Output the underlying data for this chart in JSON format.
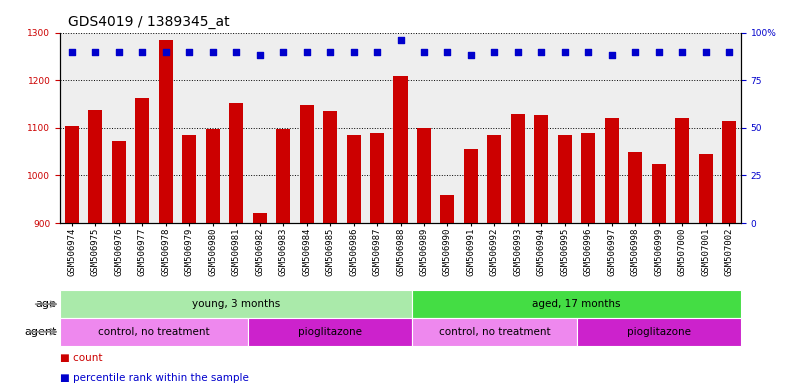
{
  "title": "GDS4019 / 1389345_at",
  "samples": [
    "GSM506974",
    "GSM506975",
    "GSM506976",
    "GSM506977",
    "GSM506978",
    "GSM506979",
    "GSM506980",
    "GSM506981",
    "GSM506982",
    "GSM506983",
    "GSM506984",
    "GSM506985",
    "GSM506986",
    "GSM506987",
    "GSM506988",
    "GSM506989",
    "GSM506990",
    "GSM506991",
    "GSM506992",
    "GSM506993",
    "GSM506994",
    "GSM506995",
    "GSM506996",
    "GSM506997",
    "GSM506998",
    "GSM506999",
    "GSM507000",
    "GSM507001",
    "GSM507002"
  ],
  "counts": [
    1103,
    1138,
    1073,
    1162,
    1284,
    1085,
    1098,
    1153,
    921,
    1097,
    1148,
    1135,
    1085,
    1090,
    1208,
    1100,
    960,
    1055,
    1085,
    1130,
    1128,
    1085,
    1090,
    1120,
    1050,
    1025,
    1120,
    1046,
    1115
  ],
  "percentile_ranks": [
    90,
    90,
    90,
    90,
    90,
    90,
    90,
    90,
    88,
    90,
    90,
    90,
    90,
    90,
    96,
    90,
    90,
    88,
    90,
    90,
    90,
    90,
    90,
    88,
    90,
    90,
    90,
    90,
    90
  ],
  "ylim_left": [
    900,
    1300
  ],
  "ylim_right": [
    0,
    100
  ],
  "yticks_left": [
    900,
    1000,
    1100,
    1200,
    1300
  ],
  "yticks_right": [
    0,
    25,
    50,
    75,
    100
  ],
  "bar_color": "#cc0000",
  "dot_color": "#0000cc",
  "groups_age": [
    {
      "label": "young, 3 months",
      "start": 0,
      "end": 15,
      "color": "#aaeaaa"
    },
    {
      "label": "aged, 17 months",
      "start": 15,
      "end": 29,
      "color": "#44dd44"
    }
  ],
  "groups_agent": [
    {
      "label": "control, no treatment",
      "start": 0,
      "end": 8,
      "color": "#ee88ee"
    },
    {
      "label": "pioglitazone",
      "start": 8,
      "end": 15,
      "color": "#cc22cc"
    },
    {
      "label": "control, no treatment",
      "start": 15,
      "end": 22,
      "color": "#ee88ee"
    },
    {
      "label": "pioglitazone",
      "start": 22,
      "end": 29,
      "color": "#cc22cc"
    }
  ],
  "background_color": "#ffffff",
  "plot_bg_color": "#eeeeee",
  "title_fontsize": 10,
  "tick_fontsize": 6.5,
  "annot_fontsize": 7.5,
  "label_fontsize": 8
}
